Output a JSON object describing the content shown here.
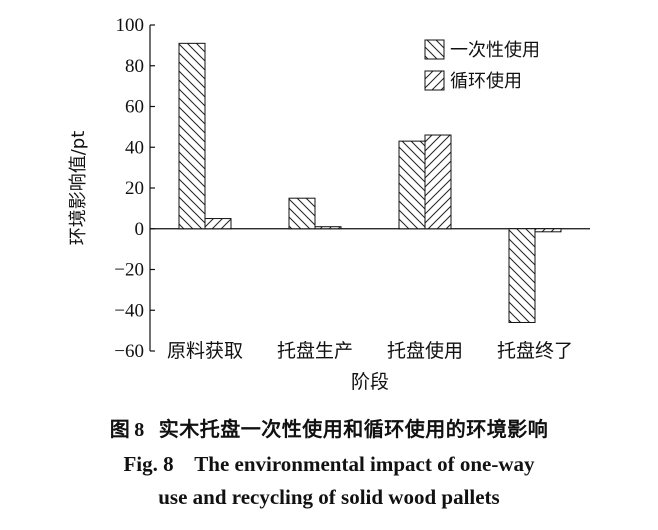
{
  "chart_data": {
    "type": "bar",
    "categories": [
      "原料获取",
      "托盘生产",
      "托盘使用",
      "托盘终了"
    ],
    "series": [
      {
        "name": "一次性使用",
        "values": [
          91,
          15,
          43,
          -46
        ]
      },
      {
        "name": "循环使用",
        "values": [
          5,
          1,
          46,
          -1.5
        ]
      }
    ],
    "ylabel": "环境影响值/pt",
    "xlabel": "阶段",
    "ylim": [
      -60,
      100
    ],
    "yticks": [
      -60,
      -40,
      -20,
      0,
      20,
      40,
      60,
      80,
      100
    ],
    "ytick_labels": [
      "−60",
      "−40",
      "−20",
      "0",
      "20",
      "40",
      "60",
      "80",
      "100"
    ],
    "legend_position": "top-right"
  },
  "caption": {
    "zh_prefix": "图",
    "zh_number": "8",
    "zh_text": "实木托盘一次性使用和循环使用的环境影响",
    "en_line1": "Fig. 8    The environmental impact of one-way",
    "en_line2": "use and recycling of solid wood pallets"
  }
}
